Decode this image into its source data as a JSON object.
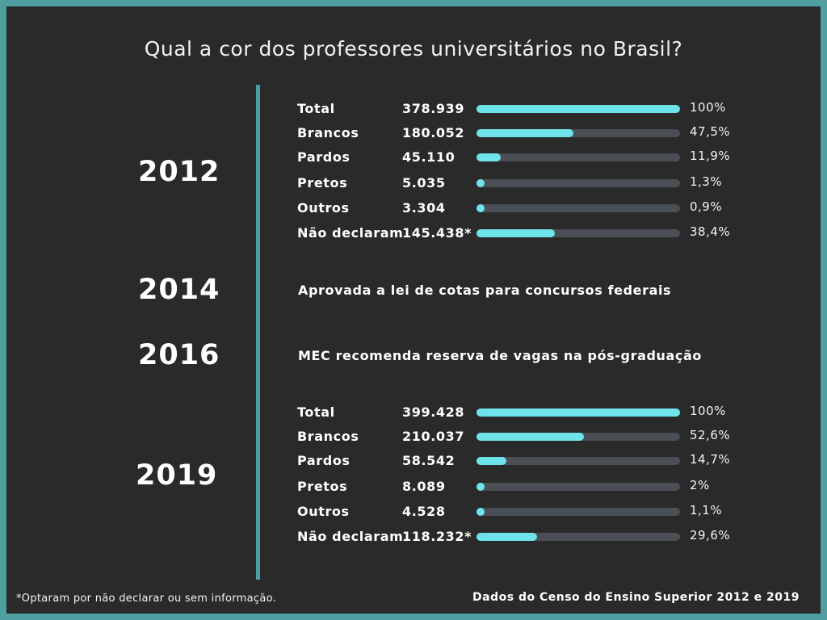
{
  "title": "Qual a cor dos professores universitários no Brasil?",
  "footnote": "*Optaram por não declarar ou sem informação.",
  "source": "Dados do Censo do Ensino Superior 2012 e 2019",
  "events": {
    "e2014": {
      "year": "2014",
      "text": "Aprovada a lei de cotas para concursos federais"
    },
    "e2016": {
      "year": "2016",
      "text": "MEC recomenda reserva de vagas na pós-graduação"
    }
  },
  "colors": {
    "accent": "#6ee3ea",
    "track": "#4a4e55",
    "timeline": "#4f9ea0",
    "background": "#2a2a2a"
  },
  "chart_data": [
    {
      "type": "bar",
      "year": "2012",
      "categories": [
        "Total",
        "Brancos",
        "Pardos",
        "Pretos",
        "Outros",
        "Não declaram"
      ],
      "counts": [
        "378.939",
        "180.052",
        "45.110",
        "5.035",
        "3.304",
        "145.438*"
      ],
      "percent_labels": [
        "100%",
        "47,5%",
        "11,9%",
        "1,3%",
        "0,9%",
        "38,4%"
      ],
      "values": [
        100,
        47.5,
        11.9,
        1.3,
        0.9,
        38.4
      ],
      "ylim": [
        0,
        100
      ]
    },
    {
      "type": "bar",
      "year": "2019",
      "categories": [
        "Total",
        "Brancos",
        "Pardos",
        "Pretos",
        "Outros",
        "Não declaram"
      ],
      "counts": [
        "399.428",
        "210.037",
        "58.542",
        "8.089",
        "4.528",
        "118.232*"
      ],
      "percent_labels": [
        "100%",
        "52,6%",
        "14,7%",
        "2%",
        "1,1%",
        "29,6%"
      ],
      "values": [
        100,
        52.6,
        14.7,
        2,
        1.1,
        29.6
      ],
      "ylim": [
        0,
        100
      ]
    }
  ]
}
